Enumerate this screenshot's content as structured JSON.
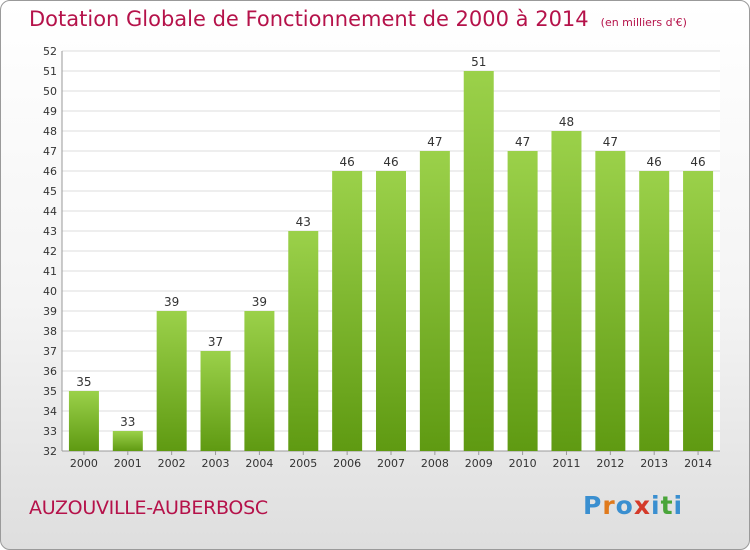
{
  "header": {
    "title": "Dotation Globale de Fonctionnement de 2000 à 2014",
    "unit_note": "(en milliers d'€)"
  },
  "footer": {
    "commune": "AUZOUVILLE-AUBERBOSC",
    "logo_text": "Proxiti"
  },
  "colors": {
    "title": "#b5124a",
    "bar_top": "#9bd14a",
    "bar_bottom": "#5f9a12",
    "axis_text": "#333333",
    "grid": "#dddddd"
  },
  "chart_data": {
    "type": "bar",
    "categories": [
      "2000",
      "2001",
      "2002",
      "2003",
      "2004",
      "2005",
      "2006",
      "2007",
      "2008",
      "2009",
      "2010",
      "2011",
      "2012",
      "2013",
      "2014"
    ],
    "values": [
      35,
      33,
      39,
      37,
      39,
      43,
      46,
      46,
      47,
      51,
      47,
      48,
      47,
      46,
      46
    ],
    "ylim": [
      32,
      52
    ],
    "yticks": [
      32,
      33,
      34,
      35,
      36,
      37,
      38,
      39,
      40,
      41,
      42,
      43,
      44,
      45,
      46,
      47,
      48,
      49,
      50,
      51,
      52
    ],
    "grid": true,
    "data_labels": true
  }
}
